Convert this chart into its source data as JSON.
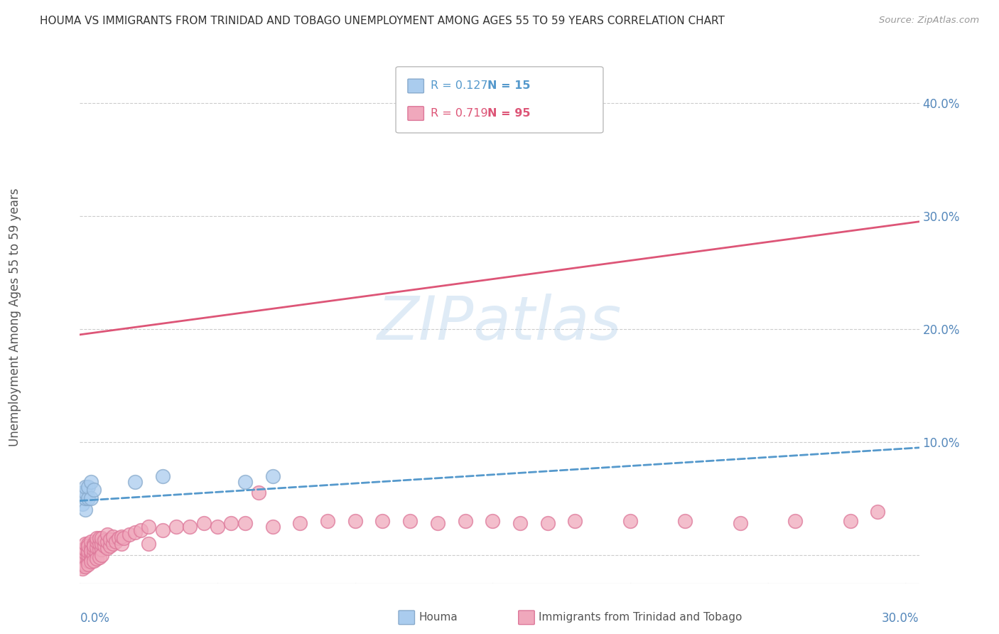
{
  "title": "HOUMA VS IMMIGRANTS FROM TRINIDAD AND TOBAGO UNEMPLOYMENT AMONG AGES 55 TO 59 YEARS CORRELATION CHART",
  "source": "Source: ZipAtlas.com",
  "ylabel": "Unemployment Among Ages 55 to 59 years",
  "xlim": [
    0.0,
    0.305
  ],
  "ylim": [
    -0.025,
    0.435
  ],
  "yticks": [
    0.0,
    0.1,
    0.2,
    0.3,
    0.4
  ],
  "ytick_labels": [
    "",
    "10.0%",
    "20.0%",
    "30.0%",
    "40.0%"
  ],
  "watermark": "ZIPatlas",
  "legend_r1": "R = 0.127",
  "legend_n1": "N = 15",
  "legend_r2": "R = 0.719",
  "legend_n2": "N = 95",
  "houma_color": "#aaccee",
  "houma_edge": "#88aacc",
  "tt_color": "#f0a8bc",
  "tt_edge": "#dd7799",
  "line_houma_color": "#5599cc",
  "line_tt_color": "#dd5577",
  "background": "#ffffff",
  "grid_color": "#cccccc",
  "title_color": "#333333",
  "axis_label_color": "#5588bb",
  "houma_line_start_y": 0.048,
  "houma_line_end_y": 0.095,
  "tt_line_start_y": 0.195,
  "tt_line_end_y": 0.295,
  "houma_x": [
    0.001,
    0.001,
    0.002,
    0.002,
    0.002,
    0.002,
    0.003,
    0.003,
    0.004,
    0.004,
    0.005,
    0.02,
    0.03,
    0.06,
    0.07
  ],
  "houma_y": [
    0.045,
    0.055,
    0.04,
    0.05,
    0.055,
    0.06,
    0.05,
    0.06,
    0.05,
    0.065,
    0.058,
    0.065,
    0.07,
    0.065,
    0.07
  ],
  "tt_x": [
    0.001,
    0.001,
    0.001,
    0.001,
    0.001,
    0.001,
    0.001,
    0.001,
    0.001,
    0.002,
    0.002,
    0.002,
    0.002,
    0.002,
    0.002,
    0.002,
    0.002,
    0.002,
    0.002,
    0.003,
    0.003,
    0.003,
    0.003,
    0.003,
    0.003,
    0.003,
    0.004,
    0.004,
    0.004,
    0.004,
    0.004,
    0.004,
    0.005,
    0.005,
    0.005,
    0.005,
    0.005,
    0.006,
    0.006,
    0.006,
    0.006,
    0.006,
    0.007,
    0.007,
    0.007,
    0.007,
    0.008,
    0.008,
    0.008,
    0.008,
    0.009,
    0.009,
    0.01,
    0.01,
    0.01,
    0.011,
    0.011,
    0.012,
    0.012,
    0.013,
    0.014,
    0.015,
    0.015,
    0.016,
    0.018,
    0.02,
    0.022,
    0.025,
    0.025,
    0.03,
    0.035,
    0.04,
    0.045,
    0.05,
    0.055,
    0.06,
    0.065,
    0.07,
    0.08,
    0.09,
    0.1,
    0.11,
    0.12,
    0.13,
    0.14,
    0.15,
    0.16,
    0.17,
    0.18,
    0.2,
    0.22,
    0.24,
    0.26,
    0.28,
    0.29
  ],
  "tt_y": [
    -0.005,
    0.0,
    -0.01,
    -0.005,
    0.0,
    0.005,
    -0.008,
    0.002,
    -0.012,
    -0.005,
    0.0,
    0.003,
    -0.008,
    -0.003,
    0.002,
    0.006,
    -0.01,
    0.005,
    0.01,
    -0.005,
    0.0,
    0.005,
    0.01,
    -0.008,
    0.003,
    0.008,
    -0.003,
    0.002,
    0.007,
    0.012,
    -0.006,
    0.004,
    0.0,
    0.005,
    0.01,
    -0.005,
    0.008,
    0.002,
    0.007,
    -0.003,
    0.012,
    0.015,
    0.005,
    0.01,
    -0.002,
    0.015,
    0.005,
    0.01,
    0.0,
    0.015,
    0.008,
    0.013,
    0.006,
    0.012,
    0.018,
    0.008,
    0.014,
    0.01,
    0.016,
    0.012,
    0.015,
    0.01,
    0.016,
    0.015,
    0.018,
    0.02,
    0.022,
    0.025,
    0.01,
    0.022,
    0.025,
    0.025,
    0.028,
    0.025,
    0.028,
    0.028,
    0.055,
    0.025,
    0.028,
    0.03,
    0.03,
    0.03,
    0.03,
    0.028,
    0.03,
    0.03,
    0.028,
    0.028,
    0.03,
    0.03,
    0.03,
    0.028,
    0.03,
    0.03,
    0.038
  ]
}
